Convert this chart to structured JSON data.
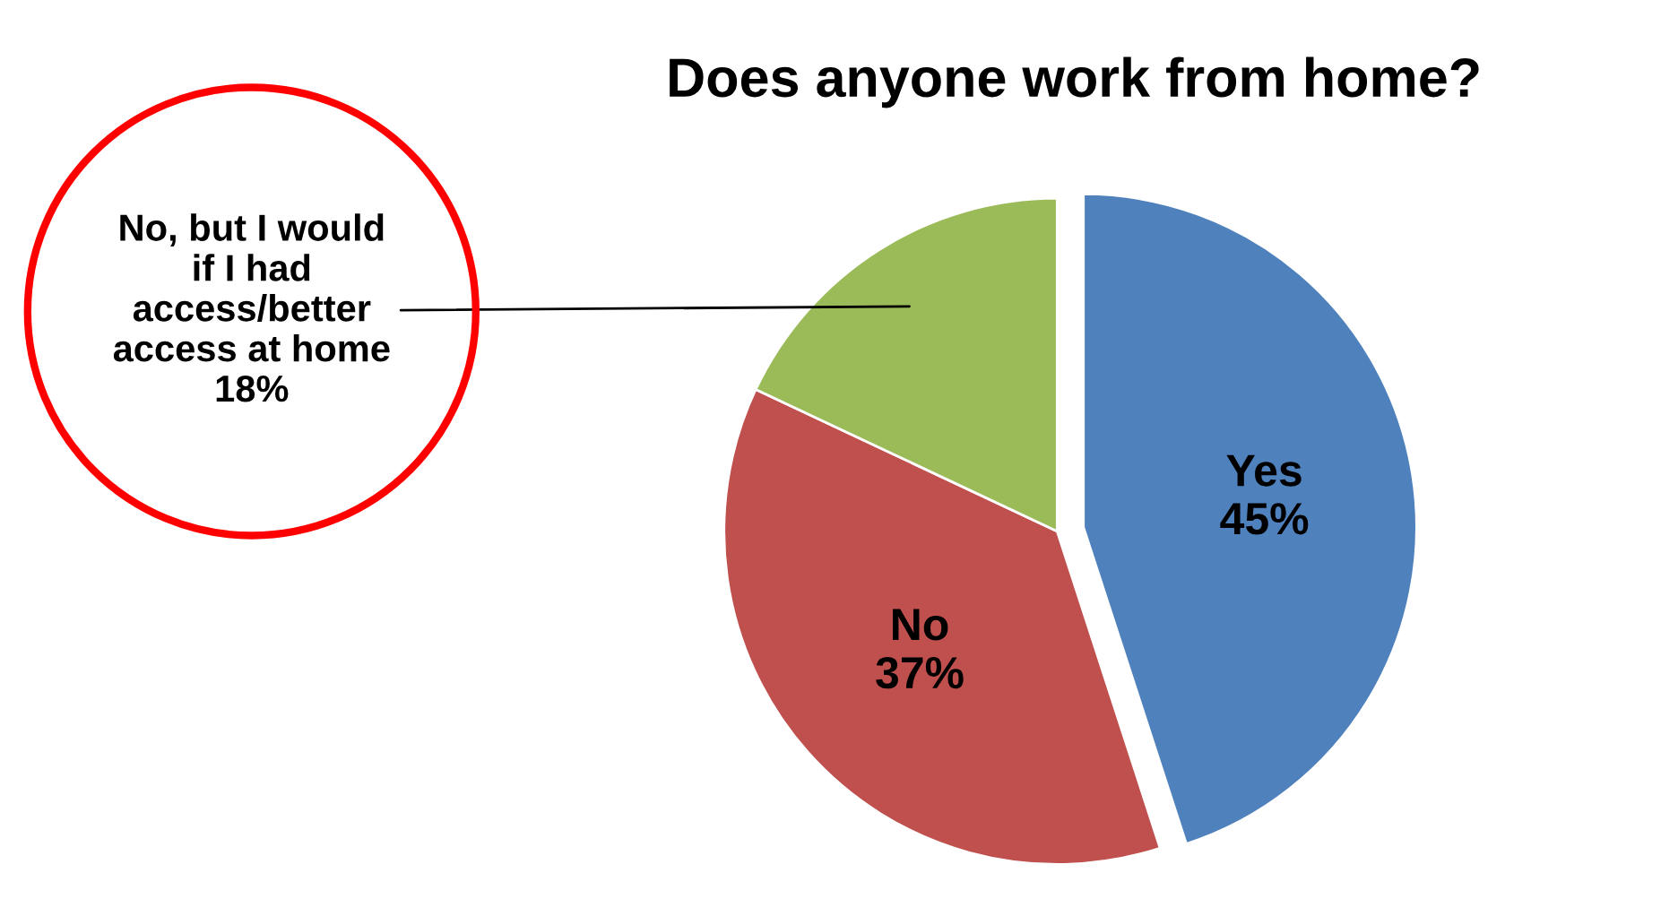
{
  "chart_data": {
    "type": "pie",
    "title": "Does anyone work from home?",
    "categories": [
      "Yes",
      "No",
      "No, but I would\nif I had\naccess/better\naccess at home"
    ],
    "values": [
      45,
      37,
      18
    ],
    "value_labels": [
      "45%",
      "37%",
      "18%"
    ],
    "colors": [
      "#4f81bd",
      "#c0504d",
      "#9bbb59"
    ]
  }
}
